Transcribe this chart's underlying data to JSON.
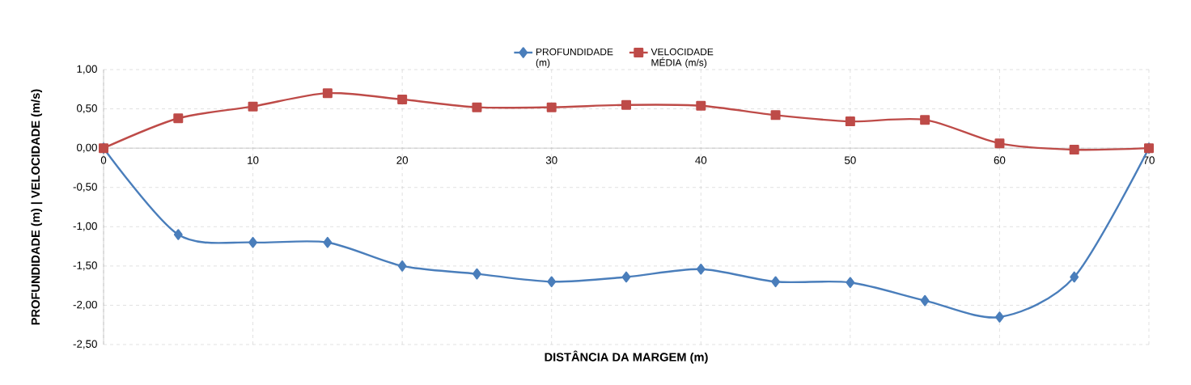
{
  "chart_data": {
    "type": "line",
    "xlabel": "DISTÂNCIA DA MARGEM (m)",
    "ylabel": "PROFUNDIDADE (m)  |   VELOCIDADE (m/s)",
    "x": [
      0,
      5,
      10,
      15,
      20,
      25,
      30,
      35,
      40,
      45,
      50,
      55,
      60,
      65,
      70
    ],
    "series": [
      {
        "name": "PROFUNDIDADE (m)",
        "color": "#4a7ebb",
        "marker": "diamond",
        "values": [
          0,
          -1.1,
          -1.2,
          -1.2,
          -1.5,
          -1.6,
          -1.7,
          -1.64,
          -1.54,
          -1.7,
          -1.71,
          -1.94,
          -2.15,
          -1.64,
          0
        ]
      },
      {
        "name": "VELOCIDADE MÉDIA (m/s)",
        "color": "#be4b48",
        "marker": "square",
        "values": [
          0,
          0.38,
          0.53,
          0.7,
          0.62,
          0.52,
          0.52,
          0.55,
          0.54,
          0.42,
          0.34,
          0.36,
          0.06,
          -0.02,
          0
        ]
      }
    ],
    "xlim": [
      0,
      70
    ],
    "xticks": [
      0,
      10,
      20,
      30,
      40,
      50,
      60,
      70
    ],
    "ylim": [
      -2.5,
      1.0
    ],
    "yticks": [
      {
        "value": -2.5,
        "label": "-2,50"
      },
      {
        "value": -2.0,
        "label": "-2,00"
      },
      {
        "value": -1.5,
        "label": "-1,50"
      },
      {
        "value": -1.0,
        "label": "-1,00"
      },
      {
        "value": -0.5,
        "label": "-0,50"
      },
      {
        "value": 0,
        "label": "0,00"
      },
      {
        "value": 0.5,
        "label": "0,50"
      },
      {
        "value": 1.0,
        "label": "1,00"
      }
    ],
    "grid": true,
    "legend": "top",
    "line_style": "solid"
  }
}
